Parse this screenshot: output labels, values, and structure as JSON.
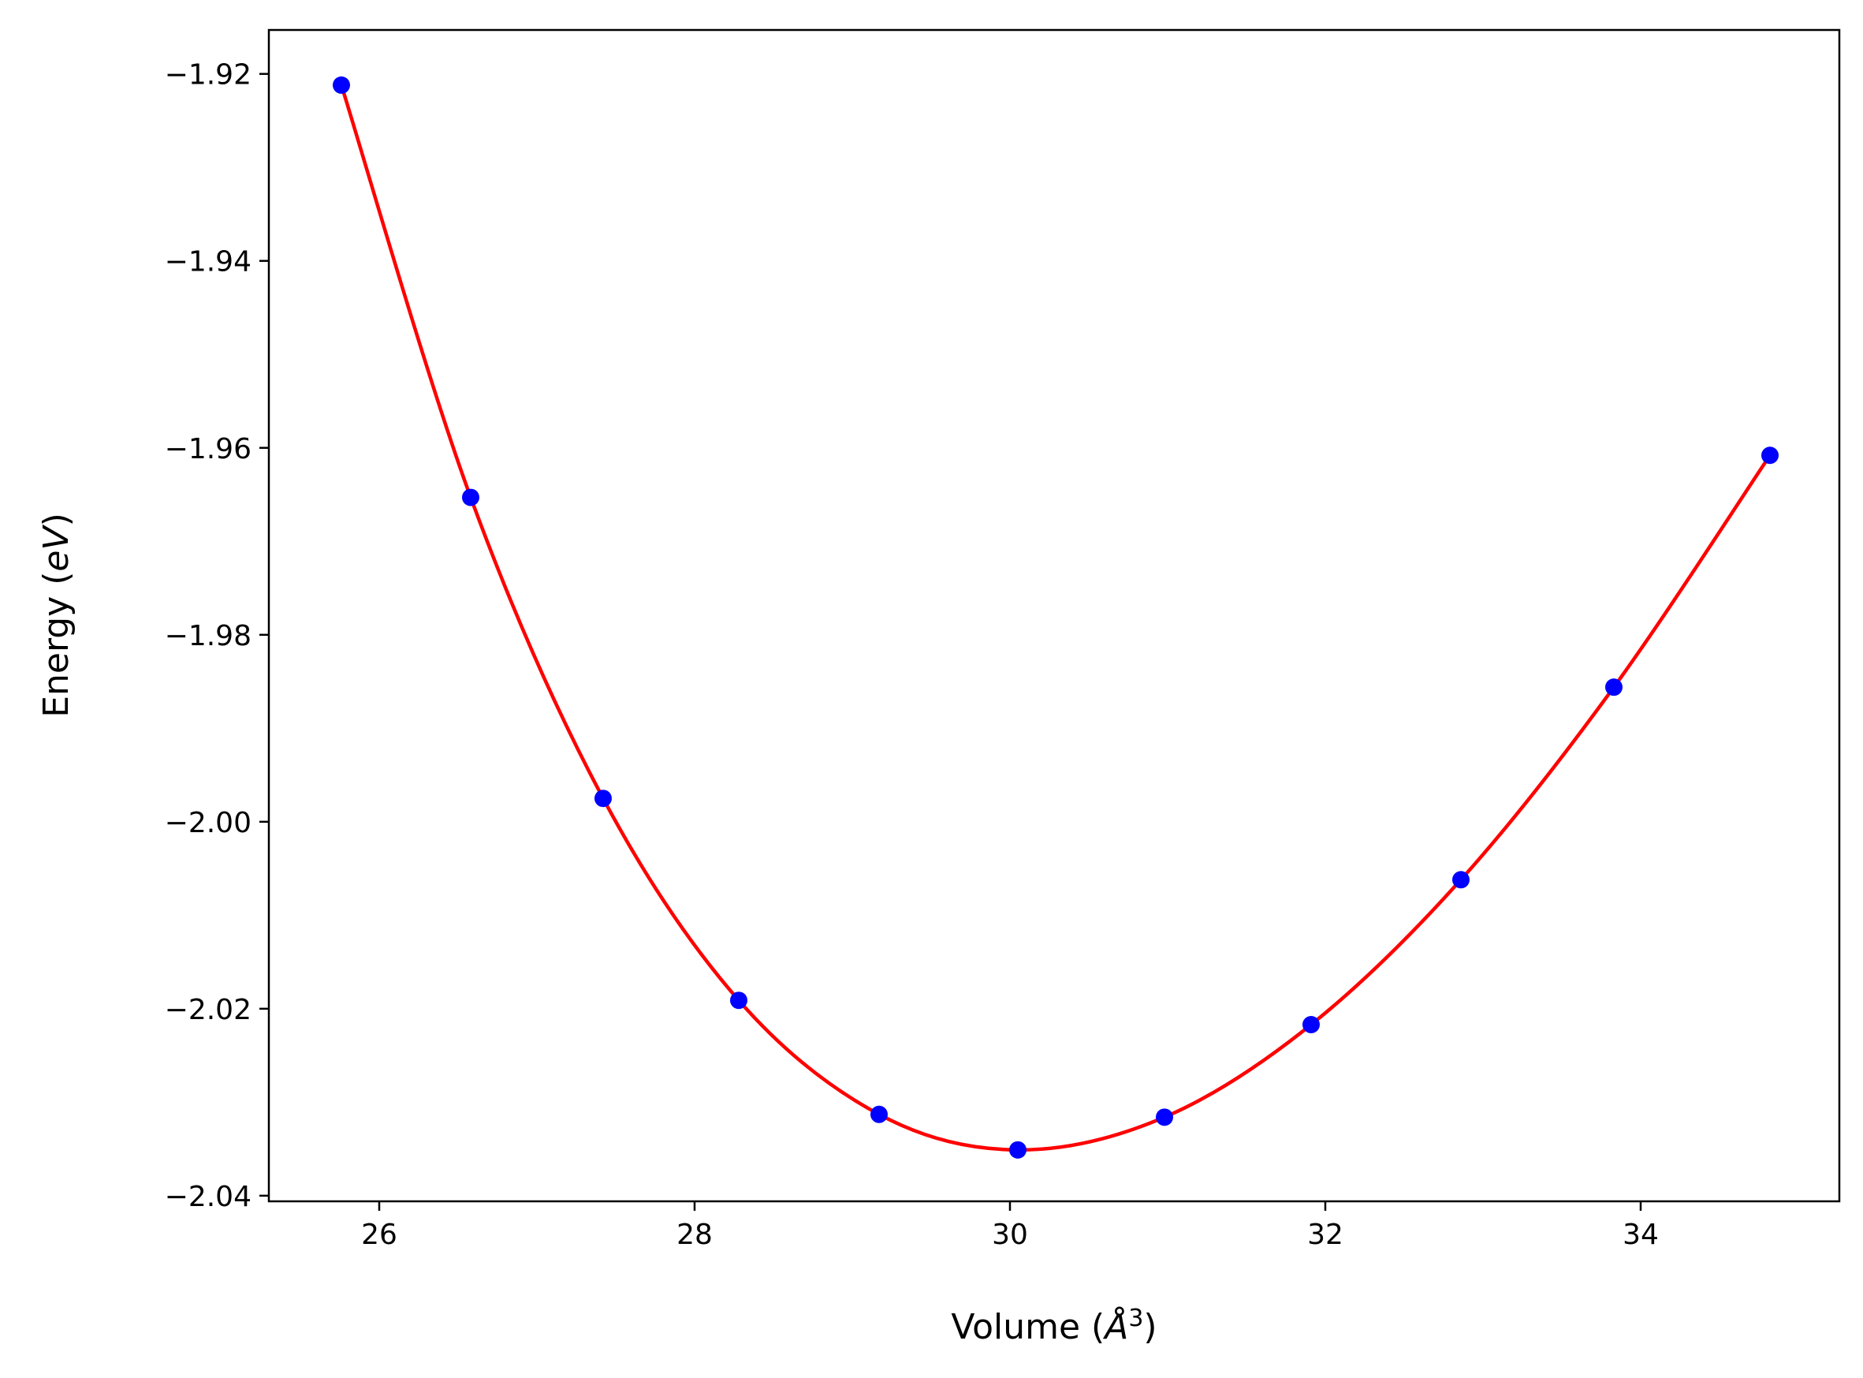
{
  "chart_data": {
    "type": "line",
    "title": "",
    "xlabel": "Volume (",
    "xlabel_unit": "Å",
    "xlabel_sup": "3",
    "xlabel_close": ")",
    "ylabel": "Energy (",
    "ylabel_unit": "eV",
    "ylabel_close": ")",
    "xlim": [
      25.3,
      35.26
    ],
    "ylim": [
      -2.0406,
      -1.9153
    ],
    "x_ticks": [
      26,
      28,
      30,
      32,
      34
    ],
    "x_tick_labels": [
      "26",
      "28",
      "30",
      "32",
      "34"
    ],
    "y_ticks": [
      -1.92,
      -1.94,
      -1.96,
      -1.98,
      -2.0,
      -2.02,
      -2.04
    ],
    "y_tick_labels": [
      "−1.92",
      "−1.94",
      "−1.96",
      "−1.98",
      "−2.00",
      "−2.02",
      "−2.04"
    ],
    "grid": false,
    "series": [
      {
        "kind": "scatter",
        "color": "#0000ff",
        "x": [
          25.76,
          26.58,
          27.42,
          28.28,
          29.17,
          30.05,
          30.98,
          31.91,
          32.86,
          33.83,
          34.82
        ],
        "y": [
          -1.9212,
          -1.9653,
          -1.9975,
          -2.0191,
          -2.0313,
          -2.0351,
          -2.0316,
          -2.0217,
          -2.0062,
          -1.9856,
          -1.9608
        ]
      },
      {
        "kind": "fit-line",
        "color": "#ff0000",
        "x": [
          25.76,
          26.58,
          27.42,
          28.28,
          29.17,
          30.05,
          30.98,
          31.91,
          32.86,
          33.83,
          34.82
        ],
        "y": [
          -1.9212,
          -1.9653,
          -1.9975,
          -2.0191,
          -2.0313,
          -2.0351,
          -2.0316,
          -2.0217,
          -2.0062,
          -1.9856,
          -1.9608
        ]
      }
    ]
  }
}
